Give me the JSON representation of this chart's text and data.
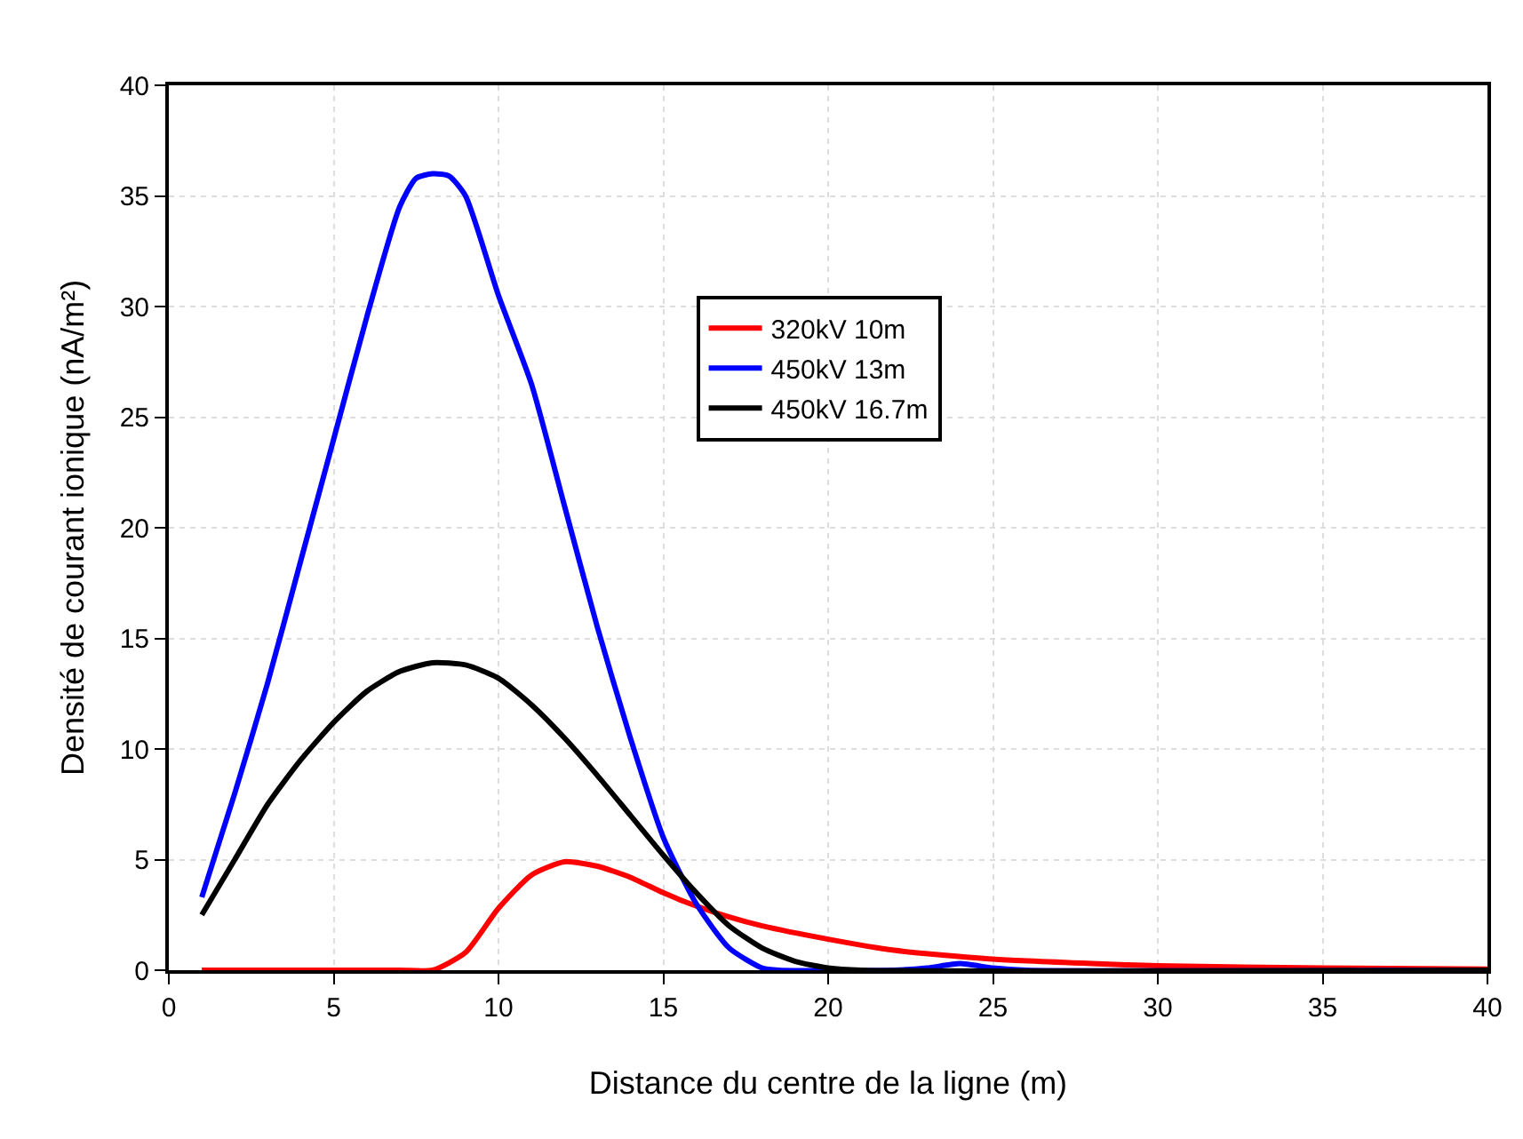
{
  "chart_data": {
    "type": "line",
    "xlabel": "Distance du centre de la ligne (m)",
    "ylabel": "Densité de courant ionique (nA/m²)",
    "xlim": [
      0,
      40
    ],
    "xticks": [
      0,
      5,
      10,
      15,
      20,
      25,
      30,
      35,
      40
    ],
    "ylim": [
      0,
      40
    ],
    "yticks": [
      0,
      5,
      10,
      15,
      20,
      25,
      30,
      35,
      40
    ],
    "grid": true,
    "legend": "center",
    "marker": "none",
    "line_style": "solid",
    "series": [
      {
        "name": "320kV 10m",
        "color": "#ff0000",
        "x": [
          1,
          3,
          5,
          7,
          8,
          9,
          10,
          11,
          12,
          13,
          14,
          15,
          16,
          17,
          18,
          20,
          22,
          25,
          28,
          30,
          35,
          40
        ],
        "values": [
          0,
          0,
          0,
          0,
          0,
          0.8,
          2.8,
          4.3,
          4.9,
          4.7,
          4.2,
          3.5,
          2.9,
          2.4,
          2,
          1.4,
          0.9,
          0.5,
          0.3,
          0.2,
          0.1,
          0.05
        ]
      },
      {
        "name": "450kV 13m",
        "color": "#0000ff",
        "x": [
          1,
          2,
          3,
          4,
          5,
          6,
          7,
          7.5,
          8,
          8.5,
          9,
          10,
          11,
          12,
          13,
          14,
          15,
          16,
          17,
          18,
          18.5,
          22,
          23,
          24,
          25,
          26,
          40
        ],
        "values": [
          3.3,
          8,
          13,
          18.5,
          24,
          29.5,
          34.5,
          35.8,
          36,
          35.9,
          35,
          30.5,
          26.5,
          21,
          15.5,
          10.5,
          6,
          3,
          1,
          0.1,
          0,
          0,
          0.1,
          0.3,
          0.1,
          0,
          0
        ]
      },
      {
        "name": "450kV 16.7m",
        "color": "#000000",
        "x": [
          1,
          2,
          3,
          4,
          5,
          6,
          7,
          8,
          9,
          10,
          11,
          12,
          13,
          14,
          15,
          16,
          17,
          18,
          19,
          20,
          21,
          40
        ],
        "values": [
          2.5,
          5,
          7.5,
          9.5,
          11.2,
          12.6,
          13.5,
          13.9,
          13.8,
          13.2,
          12,
          10.5,
          8.8,
          7,
          5.2,
          3.5,
          2,
          1,
          0.4,
          0.1,
          0,
          0
        ]
      }
    ]
  }
}
